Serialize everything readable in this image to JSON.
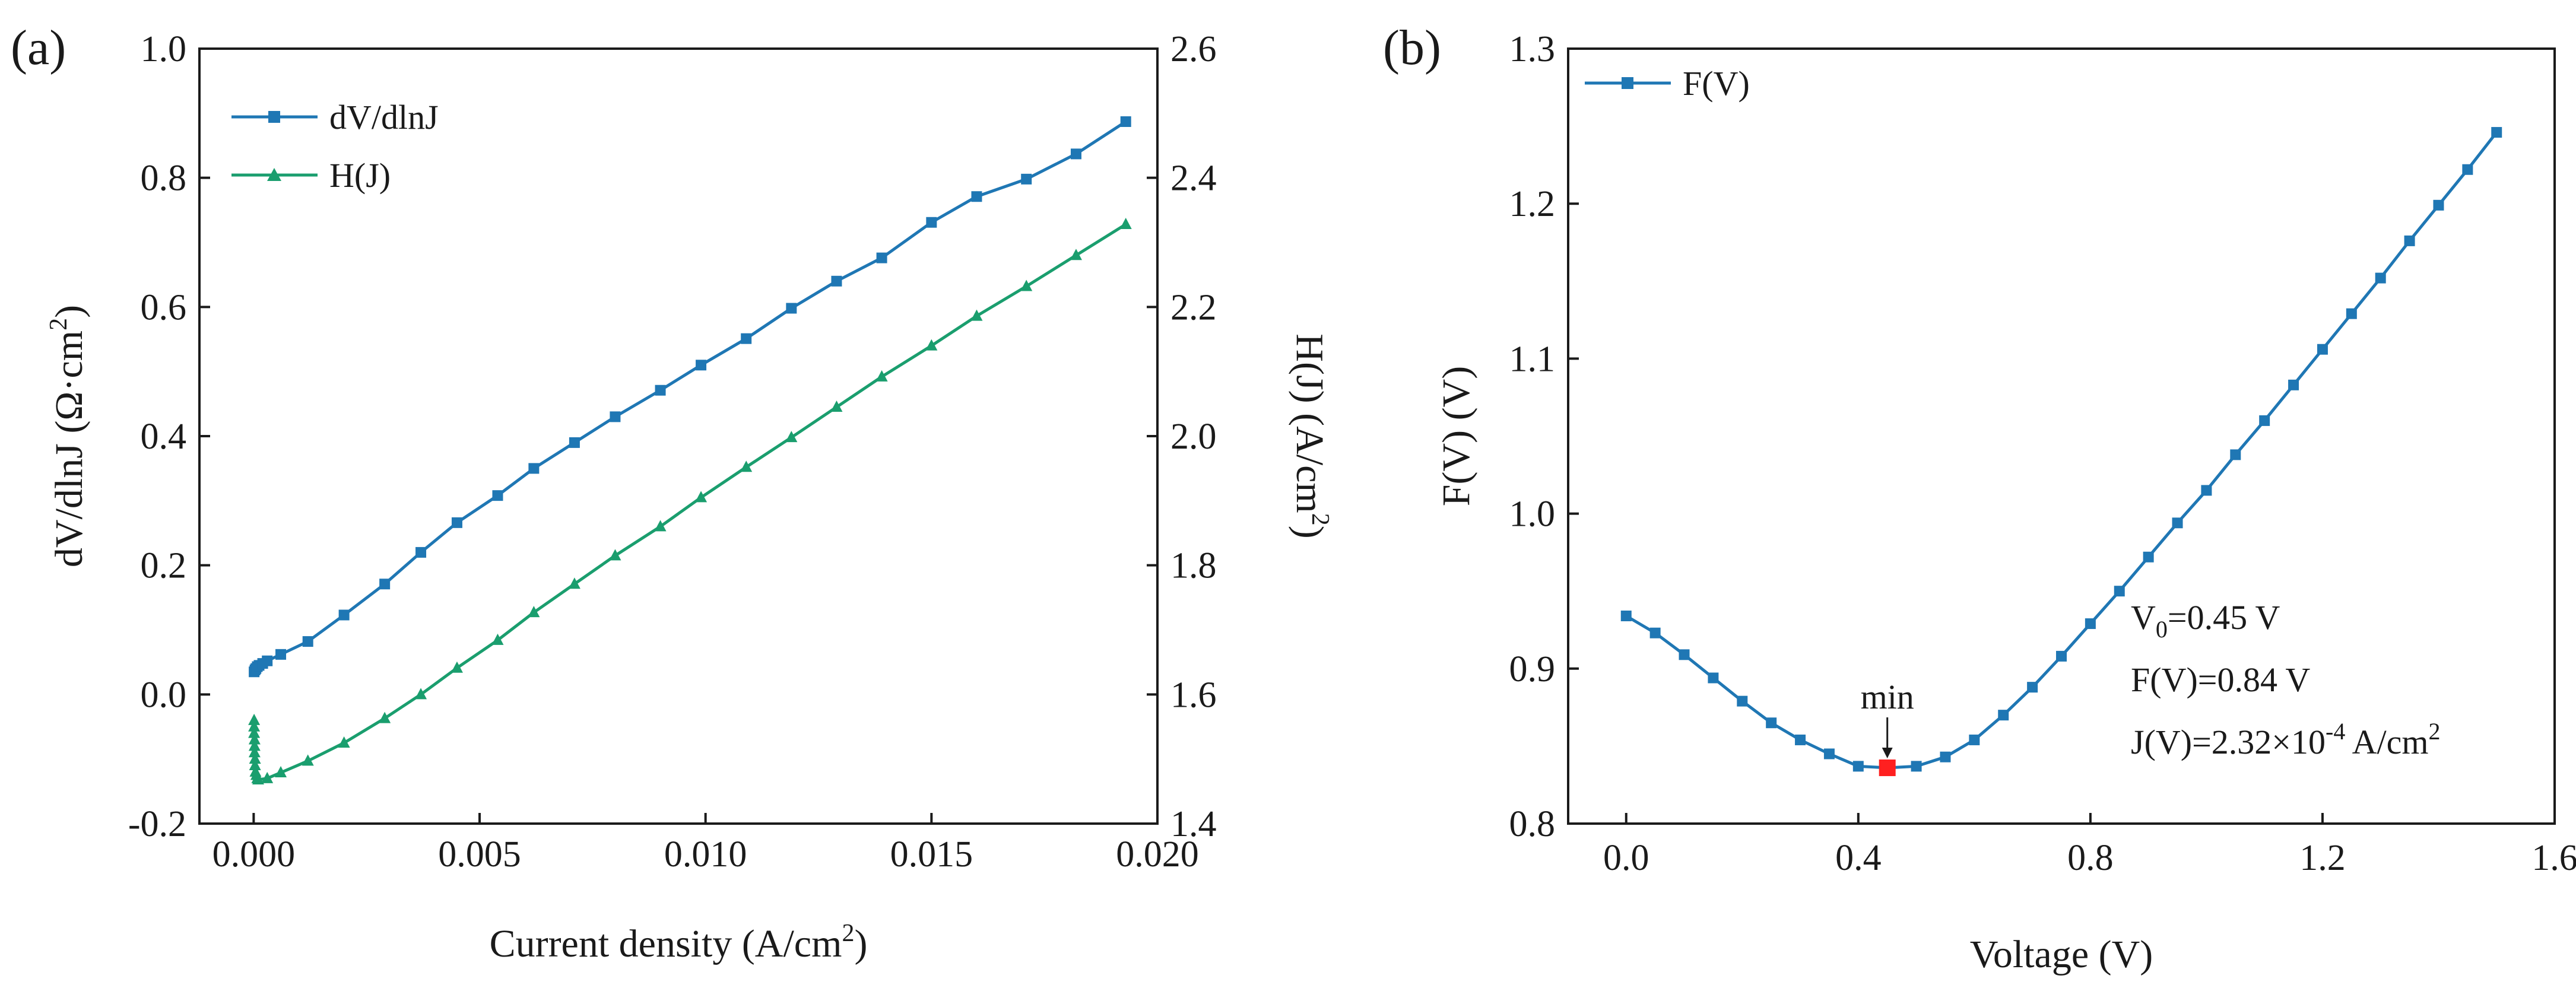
{
  "chart_data": [
    {
      "type": "line",
      "panel_label": "(a)",
      "xlabel": "Current density (A/cm²)",
      "ylabel": "dV/dlnJ (Ω·cm²)",
      "ylabel_right": "H(J) (A/cm²)",
      "xlim": [
        -0.0012,
        0.02
      ],
      "ylim": [
        -0.2,
        1.0
      ],
      "ylim_right": [
        1.4,
        2.6
      ],
      "xticks": [
        "0.000",
        "0.005",
        "0.010",
        "0.015",
        "0.020"
      ],
      "xtick_values": [
        0,
        0.005,
        0.01,
        0.015,
        0.02
      ],
      "yticks": [
        "-0.2",
        "0.0",
        "0.2",
        "0.4",
        "0.6",
        "0.8",
        "1.0"
      ],
      "ytick_values": [
        -0.2,
        0,
        0.2,
        0.4,
        0.6,
        0.8,
        1.0
      ],
      "yticks_right": [
        "1.4",
        "1.6",
        "1.8",
        "2.0",
        "2.2",
        "2.4",
        "2.6"
      ],
      "ytick_values_right": [
        1.4,
        1.6,
        1.8,
        2.0,
        2.2,
        2.4,
        2.6
      ],
      "legend_position": "top-left",
      "series": [
        {
          "name": "dV/dlnJ",
          "axis": "left",
          "marker": "square",
          "color": "#1f77b4",
          "x": [
            1e-05,
            3e-05,
            5e-05,
            8e-05,
            0.00012,
            0.0002,
            0.0003,
            0.0006,
            0.0012,
            0.002,
            0.0029,
            0.0037,
            0.0045,
            0.0054,
            0.0062,
            0.0071,
            0.008,
            0.009,
            0.0099,
            0.0109,
            0.0119,
            0.0129,
            0.0139,
            0.015,
            0.016,
            0.0171,
            0.0182,
            0.0193
          ],
          "y": [
            0.035,
            0.038,
            0.04,
            0.043,
            0.045,
            0.048,
            0.052,
            0.062,
            0.082,
            0.123,
            0.171,
            0.22,
            0.266,
            0.308,
            0.35,
            0.39,
            0.43,
            0.471,
            0.51,
            0.551,
            0.598,
            0.64,
            0.676,
            0.731,
            0.771,
            0.798,
            0.837,
            0.887
          ]
        },
        {
          "name": "H(J)",
          "axis": "right",
          "marker": "triangle",
          "color": "#1a9e6e",
          "x": [
            1e-05,
            1e-05,
            1e-05,
            2e-05,
            2e-05,
            2e-05,
            3e-05,
            3e-05,
            4e-05,
            6e-05,
            8e-05,
            0.0001,
            0.0003,
            0.0006,
            0.0012,
            0.002,
            0.0029,
            0.0037,
            0.0045,
            0.0054,
            0.0062,
            0.0071,
            0.008,
            0.009,
            0.0099,
            0.0109,
            0.0119,
            0.0129,
            0.0139,
            0.015,
            0.016,
            0.0171,
            0.0182,
            0.0193
          ],
          "y": [
            1.56,
            1.55,
            1.54,
            1.53,
            1.52,
            1.51,
            1.5,
            1.49,
            1.48,
            1.475,
            1.47,
            1.468,
            1.47,
            1.479,
            1.497,
            1.525,
            1.563,
            1.6,
            1.641,
            1.684,
            1.727,
            1.771,
            1.815,
            1.86,
            1.905,
            1.952,
            1.998,
            2.045,
            2.092,
            2.14,
            2.186,
            2.232,
            2.28,
            2.328
          ]
        }
      ]
    },
    {
      "type": "line",
      "panel_label": "(b)",
      "xlabel": "Voltage (V)",
      "ylabel": "F(V) (V)",
      "xlim": [
        -0.1,
        1.6
      ],
      "ylim": [
        0.8,
        1.3
      ],
      "xticks": [
        "0.0",
        "0.4",
        "0.8",
        "1.2",
        "1.6"
      ],
      "xtick_values": [
        0,
        0.4,
        0.8,
        1.2,
        1.6
      ],
      "yticks": [
        "0.8",
        "0.9",
        "1.0",
        "1.1",
        "1.2",
        "1.3"
      ],
      "ytick_values": [
        0.8,
        0.9,
        1.0,
        1.1,
        1.2,
        1.3
      ],
      "legend_position": "top-left",
      "series": [
        {
          "name": "F(V)",
          "marker": "square",
          "color": "#1f77b4",
          "x": [
            0.0,
            0.05,
            0.1,
            0.15,
            0.2,
            0.25,
            0.3,
            0.35,
            0.4,
            0.45,
            0.5,
            0.55,
            0.6,
            0.65,
            0.7,
            0.75,
            0.8,
            0.85,
            0.9,
            0.95,
            1.0,
            1.05,
            1.1,
            1.15,
            1.2,
            1.25,
            1.3,
            1.35,
            1.4,
            1.45,
            1.5
          ],
          "y": [
            0.934,
            0.923,
            0.909,
            0.894,
            0.879,
            0.865,
            0.854,
            0.845,
            0.837,
            0.836,
            0.837,
            0.843,
            0.854,
            0.87,
            0.888,
            0.908,
            0.929,
            0.95,
            0.972,
            0.994,
            1.015,
            1.038,
            1.06,
            1.083,
            1.106,
            1.129,
            1.152,
            1.176,
            1.199,
            1.222,
            1.246
          ]
        }
      ],
      "min_point": {
        "x": 0.45,
        "y": 0.836,
        "label": "min",
        "color": "#ff2020"
      },
      "annotations": {
        "v0_prefix": "V",
        "v0_sub": "0",
        "v0_rest": "=0.45 V",
        "fv_line": "F(V)=0.84 V",
        "jv_main": "J(V)=2.32×10",
        "jv_exp": "-4",
        "jv_unit": " A/cm",
        "jv_unit_exp": "2"
      }
    }
  ]
}
